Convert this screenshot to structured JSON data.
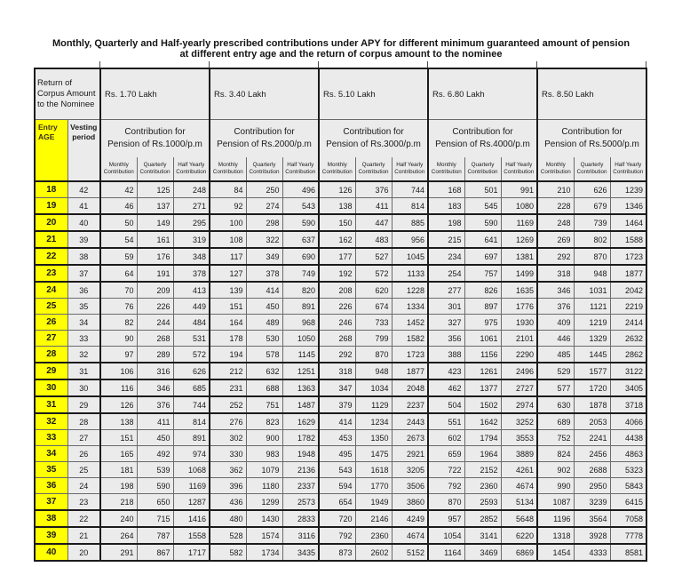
{
  "title": {
    "line1": "Monthly, Quarterly and Half-yearly prescribed contributions under APY for different minimum guaranteed amount of pension",
    "line2": "at different entry age and the return of corpus amount to the nominee"
  },
  "colors": {
    "highlight_yellow": "#ffff00",
    "cell_background": "#ebebec",
    "grid_thin": "#6b6b6b",
    "grid_heavy": "#1b1b1b",
    "text": "#1a1a1a",
    "page_background": "#ffffff"
  },
  "table": {
    "corpus_header": "Return of Corpus Amount to the Nominee",
    "corpus_amounts": [
      "Rs. 1.70 Lakh",
      "Rs. 3.40 Lakh",
      "Rs. 5.10 Lakh",
      "Rs. 6.80 Lakh",
      "Rs. 8.50 Lakh"
    ],
    "entry_age_header": "Entry\nAGE",
    "vesting_header": "Vesting\nperiod",
    "group_headers": [
      "Contribution for\nPension of Rs.1000/p.m",
      "Contribution for\nPension of Rs.2000/p.m",
      "Contribution for\nPension of Rs.3000/p.m",
      "Contribution for\nPension of Rs.4000/p.m",
      "Contribution for\nPension of Rs.5000/p.m"
    ],
    "sub_headers": [
      "Monthly\nContribution",
      "Quarterly\nContribution",
      "Half Yearly\nContribution"
    ],
    "rows": [
      {
        "age": 18,
        "vesting": 42,
        "values": [
          42,
          125,
          248,
          84,
          250,
          496,
          126,
          376,
          744,
          168,
          501,
          991,
          210,
          626,
          1239
        ]
      },
      {
        "age": 19,
        "vesting": 41,
        "values": [
          46,
          137,
          271,
          92,
          274,
          543,
          138,
          411,
          814,
          183,
          545,
          1080,
          228,
          679,
          1346
        ]
      },
      {
        "age": 20,
        "vesting": 40,
        "values": [
          50,
          149,
          295,
          100,
          298,
          590,
          150,
          447,
          885,
          198,
          590,
          1169,
          248,
          739,
          1464
        ]
      },
      {
        "age": 21,
        "vesting": 39,
        "values": [
          54,
          161,
          319,
          108,
          322,
          637,
          162,
          483,
          956,
          215,
          641,
          1269,
          269,
          802,
          1588
        ]
      },
      {
        "age": 22,
        "vesting": 38,
        "values": [
          59,
          176,
          348,
          117,
          349,
          690,
          177,
          527,
          1045,
          234,
          697,
          1381,
          292,
          870,
          1723
        ]
      },
      {
        "age": 23,
        "vesting": 37,
        "values": [
          64,
          191,
          378,
          127,
          378,
          749,
          192,
          572,
          1133,
          254,
          757,
          1499,
          318,
          948,
          1877
        ]
      },
      {
        "age": 24,
        "vesting": 36,
        "values": [
          70,
          209,
          413,
          139,
          414,
          820,
          208,
          620,
          1228,
          277,
          826,
          1635,
          346,
          1031,
          2042
        ]
      },
      {
        "age": 25,
        "vesting": 35,
        "values": [
          76,
          226,
          449,
          151,
          450,
          891,
          226,
          674,
          1334,
          301,
          897,
          1776,
          376,
          1121,
          2219
        ]
      },
      {
        "age": 26,
        "vesting": 34,
        "values": [
          82,
          244,
          484,
          164,
          489,
          968,
          246,
          733,
          1452,
          327,
          975,
          1930,
          409,
          1219,
          2414
        ]
      },
      {
        "age": 27,
        "vesting": 33,
        "values": [
          90,
          268,
          531,
          178,
          530,
          1050,
          268,
          799,
          1582,
          356,
          1061,
          2101,
          446,
          1329,
          2632
        ]
      },
      {
        "age": 28,
        "vesting": 32,
        "values": [
          97,
          289,
          572,
          194,
          578,
          1145,
          292,
          870,
          1723,
          388,
          1156,
          2290,
          485,
          1445,
          2862
        ]
      },
      {
        "age": 29,
        "vesting": 31,
        "values": [
          106,
          316,
          626,
          212,
          632,
          1251,
          318,
          948,
          1877,
          423,
          1261,
          2496,
          529,
          1577,
          3122
        ]
      },
      {
        "age": 30,
        "vesting": 30,
        "values": [
          116,
          346,
          685,
          231,
          688,
          1363,
          347,
          1034,
          2048,
          462,
          1377,
          2727,
          577,
          1720,
          3405
        ]
      },
      {
        "age": 31,
        "vesting": 29,
        "values": [
          126,
          376,
          744,
          252,
          751,
          1487,
          379,
          1129,
          2237,
          504,
          1502,
          2974,
          630,
          1878,
          3718
        ]
      },
      {
        "age": 32,
        "vesting": 28,
        "values": [
          138,
          411,
          814,
          276,
          823,
          1629,
          414,
          1234,
          2443,
          551,
          1642,
          3252,
          689,
          2053,
          4066
        ]
      },
      {
        "age": 33,
        "vesting": 27,
        "values": [
          151,
          450,
          891,
          302,
          900,
          1782,
          453,
          1350,
          2673,
          602,
          1794,
          3553,
          752,
          2241,
          4438
        ]
      },
      {
        "age": 34,
        "vesting": 26,
        "values": [
          165,
          492,
          974,
          330,
          983,
          1948,
          495,
          1475,
          2921,
          659,
          1964,
          3889,
          824,
          2456,
          4863
        ]
      },
      {
        "age": 35,
        "vesting": 25,
        "values": [
          181,
          539,
          1068,
          362,
          1079,
          2136,
          543,
          1618,
          3205,
          722,
          2152,
          4261,
          902,
          2688,
          5323
        ]
      },
      {
        "age": 36,
        "vesting": 24,
        "values": [
          198,
          590,
          1169,
          396,
          1180,
          2337,
          594,
          1770,
          3506,
          792,
          2360,
          4674,
          990,
          2950,
          5843
        ]
      },
      {
        "age": 37,
        "vesting": 23,
        "values": [
          218,
          650,
          1287,
          436,
          1299,
          2573,
          654,
          1949,
          3860,
          870,
          2593,
          5134,
          1087,
          3239,
          6415
        ]
      },
      {
        "age": 38,
        "vesting": 22,
        "values": [
          240,
          715,
          1416,
          480,
          1430,
          2833,
          720,
          2146,
          4249,
          957,
          2852,
          5648,
          1196,
          3564,
          7058
        ]
      },
      {
        "age": 39,
        "vesting": 21,
        "values": [
          264,
          787,
          1558,
          528,
          1574,
          3116,
          792,
          2360,
          4674,
          1054,
          3141,
          6220,
          1318,
          3928,
          7778
        ]
      },
      {
        "age": 40,
        "vesting": 20,
        "values": [
          291,
          867,
          1717,
          582,
          1734,
          3435,
          873,
          2602,
          5152,
          1164,
          3469,
          6869,
          1454,
          4333,
          8581
        ]
      }
    ]
  }
}
